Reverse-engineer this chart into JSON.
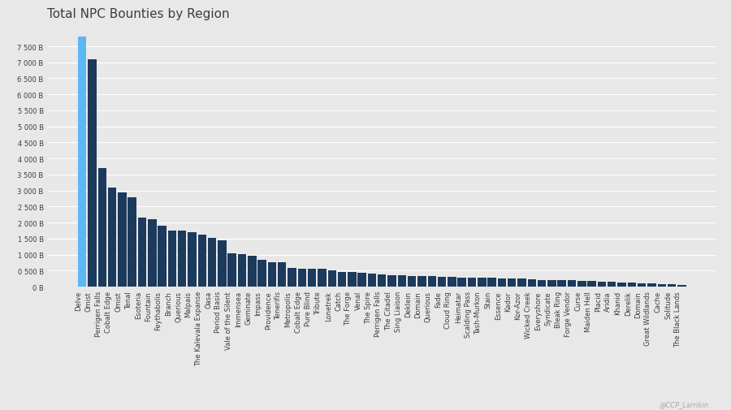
{
  "title": "Total NPC Bounties by Region",
  "background_color": "#e8e8e8",
  "bar_color_light": "#5bb8f5",
  "bar_color_dark": "#1b3a5c",
  "grid_color": "#ffffff",
  "text_color": "#3d3d3d",
  "watermark": "@CCP_Larrikin",
  "categories": [
    "Delve",
    "Omist",
    "Perrigen Falls",
    "Cobalt Edge",
    "Omist",
    "Tenal",
    "Esoteria",
    "Fountain",
    "Feythabolis",
    "Branch",
    "Querious",
    "Malpais",
    "The Kalevala Expanse",
    "Oasa",
    "Period Basis",
    "Vale of the Silent",
    "Immensea",
    "Geminate",
    "Impass",
    "Providence",
    "Tenerifis",
    "Metropolis",
    "Cobalt Edge",
    "Pure Blind",
    "Tribute",
    "Lonetrek",
    "Catch",
    "The Forge",
    "Venal",
    "The Spire",
    "Perrigen Falls",
    "The Citadel",
    "Sing Liaison",
    "Deklein",
    "Domain",
    "Querious",
    "Fade",
    "Cloud Ring",
    "Heimatar",
    "Scalding Pass",
    "Tash-Murkon",
    "Stain",
    "Essence",
    "Kador",
    "Kor-Azor",
    "Wicked Creek",
    "Everyshore",
    "Syndicate",
    "Bleak Ring",
    "Forge Vendor",
    "Curse",
    "Maiden Hell",
    "Placid",
    "Aridia",
    "Khanid",
    "Derelik",
    "Domain",
    "Great Wildlands",
    "Cache",
    "Solitude",
    "The Black Lands"
  ],
  "values": [
    7800,
    7100,
    3700,
    3100,
    2950,
    2800,
    2150,
    2100,
    1900,
    1760,
    1750,
    1700,
    1620,
    1520,
    1460,
    1050,
    1010,
    970,
    830,
    760,
    760,
    600,
    570,
    560,
    560,
    500,
    470,
    460,
    430,
    420,
    380,
    360,
    355,
    345,
    340,
    330,
    320,
    310,
    295,
    290,
    285,
    280,
    270,
    260,
    250,
    235,
    220,
    210,
    200,
    195,
    185,
    170,
    155,
    145,
    135,
    125,
    115,
    100,
    90,
    80,
    60
  ],
  "ylim_max": 8200,
  "ytick_values": [
    0,
    500,
    1000,
    1500,
    2000,
    2500,
    3000,
    3500,
    4000,
    4500,
    5000,
    5500,
    6000,
    6500,
    7000,
    7500
  ],
  "title_fontsize": 11,
  "tick_fontsize": 6,
  "watermark_fontsize": 6
}
